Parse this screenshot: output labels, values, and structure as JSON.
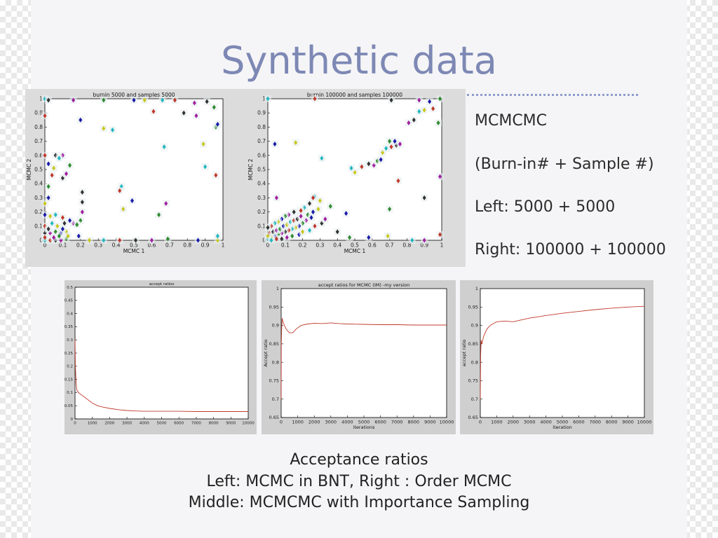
{
  "slide": {
    "title": "Synthetic data",
    "side_lines": [
      "MCMCMC",
      "(Burn-in# + Sample #)",
      "Left: 5000 + 5000",
      "Right: 100000 + 100000"
    ],
    "caption": {
      "heading": "Acceptance ratios",
      "line1": "Left: MCMC in BNT, Right : Order MCMC",
      "line2": "Middle: MCMCMC with Importance Sampling"
    }
  },
  "colors": {
    "title": "#7d88b4",
    "line": "#c0392b",
    "point_palette": [
      "#1a1aa8",
      "#c0392b",
      "#2e8b2e",
      "#22b8c0",
      "#a020a0",
      "#c8c820",
      "#333333"
    ]
  },
  "chart_data": [
    {
      "type": "scatter",
      "title": "burnin 5000 and samples 5000",
      "xlabel": "MCMC 1",
      "ylabel": "MCMC 2",
      "xlim": [
        0,
        1
      ],
      "ylim": [
        0,
        1
      ],
      "x_ticks": [
        "0",
        "0.1",
        "0.2",
        "0.3",
        "0.4",
        "0.5",
        "0.6",
        "0.7",
        "0.8",
        "0.9",
        "1"
      ],
      "y_ticks": [
        "0",
        "0.1",
        "0.2",
        "0.3",
        "0.4",
        "0.5",
        "0.6",
        "0.7",
        "0.8",
        "0.9",
        "1"
      ],
      "points": [
        [
          0.0,
          1.0
        ],
        [
          0.0,
          0.88
        ],
        [
          0.02,
          0.99
        ],
        [
          0.16,
          0.99
        ],
        [
          0.33,
          0.99
        ],
        [
          0.5,
          0.99
        ],
        [
          0.56,
          0.99
        ],
        [
          0.66,
          0.99
        ],
        [
          0.73,
          0.99
        ],
        [
          0.91,
          0.98
        ],
        [
          0.84,
          0.97
        ],
        [
          0.95,
          0.94
        ],
        [
          0.2,
          0.85
        ],
        [
          0.33,
          0.79
        ],
        [
          0.38,
          0.78
        ],
        [
          0.61,
          0.91
        ],
        [
          0.78,
          0.9
        ],
        [
          0.85,
          0.88
        ],
        [
          0.96,
          0.8
        ],
        [
          0.97,
          0.82
        ],
        [
          0.89,
          0.68
        ],
        [
          0.67,
          0.66
        ],
        [
          0.0,
          0.6
        ],
        [
          0.06,
          0.6
        ],
        [
          0.1,
          0.6
        ],
        [
          0.14,
          0.53
        ],
        [
          0.02,
          0.54
        ],
        [
          0.05,
          0.51
        ],
        [
          0.08,
          0.58
        ],
        [
          0.04,
          0.46
        ],
        [
          0.1,
          0.44
        ],
        [
          0.12,
          0.47
        ],
        [
          0.02,
          0.38
        ],
        [
          0.02,
          0.3
        ],
        [
          0.0,
          0.26
        ],
        [
          0.43,
          0.38
        ],
        [
          0.42,
          0.35
        ],
        [
          0.21,
          0.34
        ],
        [
          0.68,
          0.26
        ],
        [
          0.64,
          0.18
        ],
        [
          0.49,
          0.28
        ],
        [
          0.44,
          0.22
        ],
        [
          0.9,
          0.52
        ],
        [
          0.96,
          0.46
        ],
        [
          0.21,
          0.27
        ],
        [
          0.21,
          0.2
        ],
        [
          0.2,
          0.14
        ],
        [
          0.0,
          0.18
        ],
        [
          0.03,
          0.17
        ],
        [
          0.06,
          0.18
        ],
        [
          0.1,
          0.16
        ],
        [
          0.11,
          0.12
        ],
        [
          0.16,
          0.12
        ],
        [
          0.18,
          0.11
        ],
        [
          0.14,
          0.14
        ],
        [
          0.07,
          0.1
        ],
        [
          0.04,
          0.12
        ],
        [
          0.0,
          0.1
        ],
        [
          0.0,
          0.05
        ],
        [
          0.03,
          0.05
        ],
        [
          0.06,
          0.06
        ],
        [
          0.09,
          0.05
        ],
        [
          0.12,
          0.06
        ],
        [
          0.0,
          0.0
        ],
        [
          0.03,
          0.0
        ],
        [
          0.06,
          0.0
        ],
        [
          0.09,
          0.0
        ],
        [
          0.12,
          0.01
        ],
        [
          0.19,
          0.03
        ],
        [
          0.25,
          0.0
        ],
        [
          0.33,
          0.0
        ],
        [
          0.42,
          0.0
        ],
        [
          0.51,
          0.0
        ],
        [
          0.6,
          0.0
        ],
        [
          0.69,
          0.01
        ],
        [
          0.86,
          0.0
        ],
        [
          0.97,
          0.0
        ],
        [
          0.97,
          0.03
        ],
        [
          0.0,
          0.02
        ],
        [
          0.02,
          0.08
        ],
        [
          0.05,
          0.02
        ],
        [
          0.08,
          0.03
        ],
        [
          0.1,
          0.08
        ],
        [
          0.13,
          0.03
        ]
      ]
    },
    {
      "type": "scatter",
      "title": "burnin 100000 and samples 100000",
      "xlabel": "MCMC 1",
      "ylabel": "MCMC 2",
      "xlim": [
        0,
        1
      ],
      "ylim": [
        0,
        1
      ],
      "x_ticks": [
        "0",
        "0.1",
        "0.2",
        "0.3",
        "0.4",
        "0.5",
        "0.6",
        "0.7",
        "0.8",
        "0.9",
        "1"
      ],
      "y_ticks": [
        "0",
        "0.1",
        "0.2",
        "0.3",
        "0.4",
        "0.5",
        "0.6",
        "0.7",
        "0.8",
        "0.9",
        "1"
      ],
      "points": [
        [
          0.0,
          1.0
        ],
        [
          0.27,
          1.0
        ],
        [
          0.71,
          0.99
        ],
        [
          0.87,
          0.99
        ],
        [
          0.99,
          1.0
        ],
        [
          0.93,
          0.98
        ],
        [
          0.9,
          0.92
        ],
        [
          0.87,
          0.91
        ],
        [
          0.95,
          0.93
        ],
        [
          0.84,
          0.85
        ],
        [
          0.81,
          0.83
        ],
        [
          0.98,
          0.83
        ],
        [
          0.04,
          0.68
        ],
        [
          0.16,
          0.69
        ],
        [
          0.31,
          0.58
        ],
        [
          0.54,
          0.52
        ],
        [
          0.58,
          0.54
        ],
        [
          0.61,
          0.53
        ],
        [
          0.63,
          0.56
        ],
        [
          0.65,
          0.57
        ],
        [
          0.66,
          0.62
        ],
        [
          0.68,
          0.65
        ],
        [
          0.71,
          0.66
        ],
        [
          0.74,
          0.67
        ],
        [
          0.76,
          0.68
        ],
        [
          0.7,
          0.7
        ],
        [
          0.73,
          0.7
        ],
        [
          0.5,
          0.48
        ],
        [
          0.48,
          0.51
        ],
        [
          0.75,
          0.42
        ],
        [
          0.9,
          0.3
        ],
        [
          0.99,
          0.45
        ],
        [
          0.7,
          0.22
        ],
        [
          0.45,
          0.19
        ],
        [
          0.3,
          0.28
        ],
        [
          0.27,
          0.31
        ],
        [
          0.26,
          0.3
        ],
        [
          0.24,
          0.26
        ],
        [
          0.05,
          0.3
        ],
        [
          0.36,
          0.24
        ],
        [
          0.26,
          0.2
        ],
        [
          0.29,
          0.22
        ],
        [
          0.21,
          0.23
        ],
        [
          0.19,
          0.21
        ],
        [
          0.15,
          0.2
        ],
        [
          0.12,
          0.18
        ],
        [
          0.1,
          0.17
        ],
        [
          0.08,
          0.15
        ],
        [
          0.06,
          0.13
        ],
        [
          0.04,
          0.12
        ],
        [
          0.02,
          0.1
        ],
        [
          0.0,
          0.09
        ],
        [
          0.22,
          0.14
        ],
        [
          0.2,
          0.12
        ],
        [
          0.18,
          0.1
        ],
        [
          0.16,
          0.09
        ],
        [
          0.14,
          0.08
        ],
        [
          0.12,
          0.07
        ],
        [
          0.1,
          0.06
        ],
        [
          0.08,
          0.05
        ],
        [
          0.06,
          0.04
        ],
        [
          0.04,
          0.03
        ],
        [
          0.02,
          0.02
        ],
        [
          0.0,
          0.01
        ],
        [
          0.01,
          0.05
        ],
        [
          0.03,
          0.06
        ],
        [
          0.05,
          0.07
        ],
        [
          0.07,
          0.08
        ],
        [
          0.09,
          0.1
        ],
        [
          0.11,
          0.11
        ],
        [
          0.13,
          0.13
        ],
        [
          0.15,
          0.14
        ],
        [
          0.17,
          0.15
        ],
        [
          0.19,
          0.17
        ],
        [
          0.23,
          0.18
        ],
        [
          0.25,
          0.16
        ],
        [
          0.0,
          0.03
        ],
        [
          0.02,
          0.0
        ],
        [
          0.05,
          0.01
        ],
        [
          0.08,
          0.01
        ],
        [
          0.11,
          0.02
        ],
        [
          0.14,
          0.03
        ],
        [
          0.18,
          0.04
        ],
        [
          0.2,
          0.06
        ],
        [
          0.24,
          0.07
        ],
        [
          0.27,
          0.1
        ],
        [
          0.31,
          0.12
        ],
        [
          0.33,
          0.15
        ],
        [
          0.47,
          0.02
        ],
        [
          0.58,
          0.02
        ],
        [
          0.69,
          0.03
        ],
        [
          0.83,
          0.0
        ],
        [
          0.99,
          0.04
        ],
        [
          0.4,
          0.06
        ],
        [
          0.9,
          0.0
        ]
      ]
    },
    {
      "type": "line",
      "title": "accept ratios",
      "xlabel": "",
      "ylabel": "",
      "xlim": [
        0,
        10000
      ],
      "ylim": [
        0,
        0.5
      ],
      "x_ticks": [
        "0",
        "1000",
        "2000",
        "3000",
        "4000",
        "5000",
        "6000",
        "7000",
        "8000",
        "9000",
        "10000"
      ],
      "y_ticks": [
        "0",
        "0.05",
        "0.1",
        "0.15",
        "0.2",
        "0.25",
        "0.3",
        "0.35",
        "0.4",
        "0.45",
        "0.5"
      ],
      "series": [
        {
          "x": [
            0,
            20,
            60,
            100,
            200,
            400,
            600,
            800,
            1000,
            1300,
            1600,
            2000,
            2500,
            3000,
            3500,
            4000,
            5000,
            6000,
            7000,
            8000,
            9000,
            10000
          ],
          "y": [
            0.3,
            0.2,
            0.14,
            0.11,
            0.1,
            0.09,
            0.08,
            0.07,
            0.06,
            0.05,
            0.045,
            0.04,
            0.035,
            0.032,
            0.03,
            0.029,
            0.029,
            0.029,
            0.028,
            0.028,
            0.028,
            0.028
          ]
        }
      ]
    },
    {
      "type": "line",
      "title": "accept ratios for MCMC (IM) -my version",
      "xlabel": "iterations",
      "ylabel": "Accept ratio",
      "xlim": [
        0,
        10000
      ],
      "ylim": [
        0.65,
        1
      ],
      "x_ticks": [
        "0",
        "1000",
        "2000",
        "3000",
        "4000",
        "5000",
        "6000",
        "7000",
        "8000",
        "9000",
        "10000"
      ],
      "y_ticks": [
        "0.65",
        "0.7",
        "0.75",
        "0.8",
        "0.85",
        "0.9",
        "0.95",
        "1"
      ],
      "series": [
        {
          "x": [
            0,
            10,
            30,
            60,
            100,
            200,
            300,
            500,
            700,
            900,
            1200,
            1600,
            2000,
            2500,
            3000,
            3500,
            4000,
            5000,
            6000,
            7000,
            8000,
            9000,
            10000
          ],
          "y": [
            0.7,
            0.85,
            0.89,
            0.92,
            0.91,
            0.9,
            0.89,
            0.88,
            0.88,
            0.89,
            0.9,
            0.904,
            0.906,
            0.905,
            0.907,
            0.905,
            0.904,
            0.903,
            0.902,
            0.902,
            0.901,
            0.901,
            0.901
          ]
        }
      ]
    },
    {
      "type": "line",
      "title": "",
      "xlabel": "iteration",
      "ylabel": "accept ratio",
      "xlim": [
        0,
        10000
      ],
      "ylim": [
        0.65,
        1
      ],
      "x_ticks": [
        "0",
        "1000",
        "2000",
        "3000",
        "4000",
        "5000",
        "6000",
        "7000",
        "8000",
        "9000",
        "10000"
      ],
      "y_ticks": [
        "0.65",
        "0.7",
        "0.75",
        "0.8",
        "0.85",
        "0.9",
        "0.95",
        "1"
      ],
      "series": [
        {
          "x": [
            0,
            20,
            50,
            100,
            200,
            300,
            400,
            600,
            800,
            1000,
            1500,
            2000,
            2500,
            3000,
            4000,
            5000,
            6000,
            7000,
            8000,
            9000,
            10000
          ],
          "y": [
            0.7,
            0.82,
            0.86,
            0.85,
            0.87,
            0.88,
            0.89,
            0.9,
            0.905,
            0.91,
            0.912,
            0.91,
            0.915,
            0.92,
            0.927,
            0.933,
            0.938,
            0.943,
            0.947,
            0.95,
            0.952
          ]
        }
      ]
    }
  ]
}
